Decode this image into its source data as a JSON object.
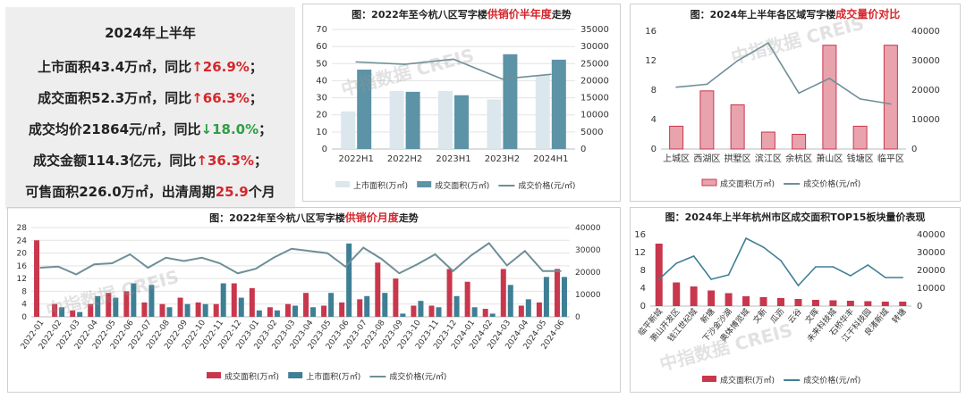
{
  "summary": {
    "title": "2024年上半年",
    "l1a": "上市面积43.4万㎡，同比",
    "l1b": "↑26.9%",
    "l1c": "；",
    "l2a": "成交面积52.3万㎡，同比",
    "l2b": "↑66.3%",
    "l2c": "；",
    "l3a": "成交均价21864元/㎡，同比",
    "l3b": "↓18.0%",
    "l3c": "；",
    "l4a": "成交金额114.3亿元，同比",
    "l4b": "↑36.3%",
    "l4c": "；",
    "l5a": "可售面积226.0万㎡，出清周期",
    "l5b": "25.9",
    "l5c": "个月"
  },
  "watermark": "中指数据 CREIS",
  "colors": {
    "red": "#c9374d",
    "redLight": "#e9a3ad",
    "teal": "#3f7f95",
    "tealLight": "#dbe7ec",
    "line": "#6e8f97",
    "accent": "#d6262c"
  },
  "chart_data": [
    {
      "id": "p1",
      "type": "bar+line",
      "title_pre": "图：2022年至今杭八区写字楼",
      "title_hl": "供销价半年度",
      "title_post": "走势",
      "categories": [
        "2022H1",
        "2022H2",
        "2023H1",
        "2023H2",
        "2024H1"
      ],
      "ylim": [
        0,
        70
      ],
      "yticks": [
        0,
        10,
        20,
        30,
        40,
        50,
        60,
        70
      ],
      "y2lim": [
        0,
        35000
      ],
      "y2ticks": [
        0,
        5000,
        10000,
        15000,
        20000,
        25000,
        30000,
        35000
      ],
      "series": [
        {
          "name": "上市面积(万㎡)",
          "values": [
            22,
            34,
            34,
            29,
            43
          ],
          "color": "#dbe7ec"
        },
        {
          "name": "成交面积(万㎡)",
          "values": [
            46.5,
            33.5,
            31.5,
            55.5,
            52.3
          ],
          "color": "#5d93a6"
        },
        {
          "name": "成交价格(元/㎡)",
          "values": [
            25500,
            24800,
            26300,
            20500,
            21864
          ],
          "color": "#6e8f97",
          "axis": "right",
          "kind": "line"
        }
      ]
    },
    {
      "id": "p2",
      "type": "bar+line",
      "title_pre": "图：2024年上半年各区域写字楼",
      "title_hl": "成交量价对比",
      "title_post": "",
      "categories": [
        "上城区",
        "西湖区",
        "拱墅区",
        "滨江区",
        "余杭区",
        "萧山区",
        "钱塘区",
        "临平区"
      ],
      "ylim": [
        0,
        16
      ],
      "yticks": [
        0,
        4,
        8,
        12,
        16
      ],
      "y2lim": [
        0,
        40000
      ],
      "y2ticks": [
        0,
        10000,
        20000,
        30000,
        40000
      ],
      "series": [
        {
          "name": "成交面积(万㎡)",
          "values": [
            3.1,
            7.9,
            6,
            2.3,
            2,
            14.1,
            3.1,
            14.1
          ],
          "color": "#e9a3ad",
          "kind": "bar"
        },
        {
          "name": "成交价格(元/㎡)",
          "values": [
            21000,
            22000,
            30000,
            36000,
            19000,
            24000,
            17000,
            15300
          ],
          "color": "#6e8f97",
          "axis": "right",
          "kind": "line"
        }
      ]
    },
    {
      "id": "p3",
      "type": "bar+line",
      "title_pre": "图：2022年至今杭八区写字楼",
      "title_hl": "供销价月度",
      "title_post": "走势",
      "categories": [
        "2022-01",
        "2022-02",
        "2022-03",
        "2022-04",
        "2022-05",
        "2022-06",
        "2022-07",
        "2022-08",
        "2022-09",
        "2022-10",
        "2022-11",
        "2022-12",
        "2023-01",
        "2023-02",
        "2023-03",
        "2023-04",
        "2023-05",
        "2023-06",
        "2023-07",
        "2023-08",
        "2023-09",
        "2023-10",
        "2023-11",
        "2023-12",
        "2024-01",
        "2024-02",
        "2024-03",
        "2024-04",
        "2024-05",
        "2024-06"
      ],
      "ylim": [
        0,
        28
      ],
      "yticks": [
        0,
        4,
        8,
        12,
        16,
        20,
        24,
        28
      ],
      "y2lim": [
        0,
        40000
      ],
      "y2ticks": [
        0,
        10000,
        20000,
        30000,
        40000
      ],
      "series": [
        {
          "name": "成交面积(万㎡)",
          "values": [
            24,
            4,
            2,
            4,
            7.5,
            8,
            4.5,
            4,
            6,
            4.5,
            4,
            10.5,
            9,
            3,
            4,
            7.5,
            3.5,
            4.5,
            5.5,
            17,
            12,
            3.5,
            3.5,
            15,
            11,
            2.5,
            15,
            3.5,
            4.5,
            15
          ],
          "color": "#c9374d",
          "kind": "bar"
        },
        {
          "name": "上市面积(万㎡)",
          "values": [
            0,
            3,
            1.5,
            6.5,
            6,
            10.5,
            10,
            3,
            4,
            4,
            10.5,
            6,
            2,
            2,
            3.5,
            3,
            7.5,
            23,
            6.5,
            7.5,
            1,
            5,
            3,
            6.5,
            3,
            1,
            10,
            5.5,
            12.5,
            12.5
          ],
          "color": "#3f7f95",
          "kind": "bar"
        },
        {
          "name": "成交价格(元/㎡)",
          "values": [
            22000,
            22500,
            19000,
            23500,
            24000,
            28000,
            22000,
            26500,
            25000,
            26500,
            24000,
            19500,
            21500,
            26500,
            30500,
            29500,
            28500,
            22500,
            31000,
            26000,
            19500,
            23500,
            28000,
            20500,
            27500,
            33000,
            23000,
            29500,
            20500,
            20500
          ],
          "color": "#6e8f97",
          "axis": "right",
          "kind": "line"
        }
      ]
    },
    {
      "id": "p4",
      "type": "bar+line",
      "title_pre": "图：2024年上半年杭州市区成交面积TOP15板块量价表现",
      "title_hl": "",
      "title_post": "",
      "categories": [
        "临平新城",
        "萧山开发区",
        "钱江世纪城",
        "新塘",
        "下沙金沙湖",
        "奥体博览城",
        "文新",
        "瓜沥",
        "云谷",
        "文晖",
        "未来科技城",
        "石桥华丰",
        "江干科技园",
        "良渚新城",
        "转塘"
      ],
      "ylim": [
        0,
        16
      ],
      "yticks": [
        0,
        4,
        8,
        12,
        16
      ],
      "y2lim": [
        0,
        40000
      ],
      "y2ticks": [
        0,
        10000,
        20000,
        30000,
        40000
      ],
      "series": [
        {
          "name": "成交面积(万㎡)",
          "values": [
            14,
            5.3,
            4.4,
            3.5,
            2.9,
            2.2,
            2,
            1.8,
            1.6,
            1.4,
            1.3,
            1.2,
            1.1,
            1.0,
            1.0
          ],
          "color": "#c9374d",
          "kind": "bar"
        },
        {
          "name": "成交价格(元/㎡)",
          "values": [
            15000,
            24000,
            28000,
            15000,
            17500,
            38000,
            33000,
            25500,
            11500,
            22000,
            22000,
            17000,
            23000,
            16000,
            16000
          ],
          "color": "#3f7f95",
          "axis": "right",
          "kind": "line"
        }
      ]
    }
  ]
}
